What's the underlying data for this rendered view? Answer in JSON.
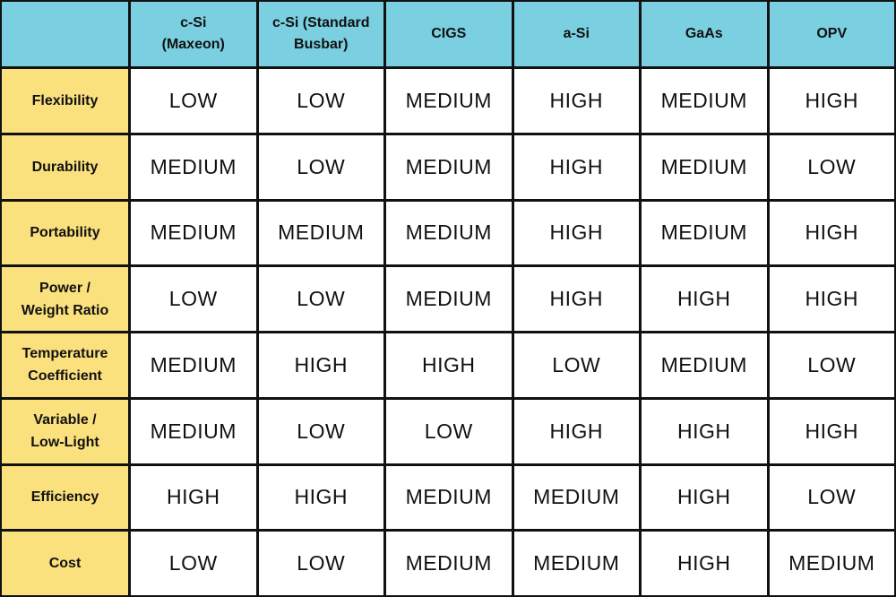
{
  "table": {
    "header": [
      "c-Si\n(Maxeon)",
      "c-Si (Standard\nBusbar)",
      "CIGS",
      "a-Si",
      "GaAs",
      "OPV"
    ],
    "rows": [
      {
        "label": "Flexibility",
        "cells": [
          "LOW",
          "LOW",
          "MEDIUM",
          "HIGH",
          "MEDIUM",
          "HIGH"
        ]
      },
      {
        "label": "Durability",
        "cells": [
          "MEDIUM",
          "LOW",
          "MEDIUM",
          "HIGH",
          "MEDIUM",
          "LOW"
        ]
      },
      {
        "label": "Portability",
        "cells": [
          "MEDIUM",
          "MEDIUM",
          "MEDIUM",
          "HIGH",
          "MEDIUM",
          "HIGH"
        ]
      },
      {
        "label": "Power /\nWeight Ratio",
        "cells": [
          "LOW",
          "LOW",
          "MEDIUM",
          "HIGH",
          "HIGH",
          "HIGH"
        ]
      },
      {
        "label": "Temperature\nCoefficient",
        "cells": [
          "MEDIUM",
          "HIGH",
          "HIGH",
          "LOW",
          "MEDIUM",
          "LOW"
        ]
      },
      {
        "label": "Variable /\nLow-Light",
        "cells": [
          "MEDIUM",
          "LOW",
          "LOW",
          "HIGH",
          "HIGH",
          "HIGH"
        ]
      },
      {
        "label": "Efficiency",
        "cells": [
          "HIGH",
          "HIGH",
          "MEDIUM",
          "MEDIUM",
          "HIGH",
          "LOW"
        ]
      },
      {
        "label": "Cost",
        "cells": [
          "LOW",
          "LOW",
          "MEDIUM",
          "MEDIUM",
          "HIGH",
          "MEDIUM"
        ]
      }
    ]
  }
}
